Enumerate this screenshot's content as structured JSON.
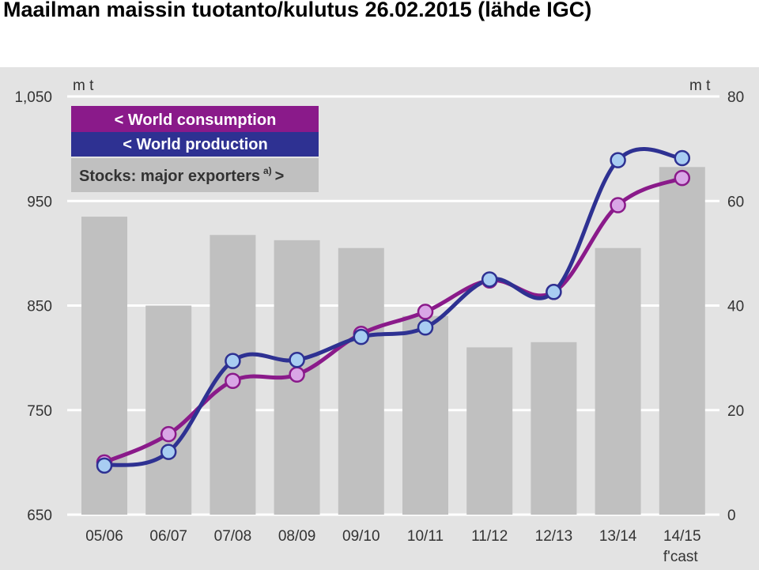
{
  "title": "Maailman maissin tuotanto/kulutus 26.02.2015 (lähde IGC)",
  "chart_data": {
    "type": "bar+line",
    "categories": [
      "05/06",
      "06/07",
      "07/08",
      "08/09",
      "09/10",
      "10/11",
      "11/12",
      "12/13",
      "13/14",
      "14/15"
    ],
    "category_sublabels": [
      "",
      "",
      "",
      "",
      "",
      "",
      "",
      "",
      "",
      "f'cast"
    ],
    "y_left": {
      "unit": "m t",
      "ylim": [
        650,
        1050
      ],
      "ticks": [
        "650",
        "750",
        "850",
        "950",
        "1,050"
      ]
    },
    "y_right": {
      "unit": "m t",
      "ylim": [
        0,
        80
      ],
      "ticks": [
        "0",
        "20",
        "40",
        "60",
        "80"
      ]
    },
    "bars": {
      "name": "Stocks: major exporters",
      "name_superscript": "a)",
      "name_suffix": ">",
      "axis": "right",
      "color": "#c0c0c0",
      "values": [
        57,
        40,
        53.5,
        52.5,
        51,
        38,
        32,
        33,
        51,
        66.5
      ]
    },
    "series": [
      {
        "name": "< World consumption",
        "axis": "left",
        "color": "#8a1a8a",
        "marker_color": "#d9a6e6",
        "values": [
          700,
          727,
          778,
          784,
          823,
          844,
          874,
          863,
          946,
          972
        ]
      },
      {
        "name": "< World production",
        "axis": "left",
        "color": "#2e3192",
        "marker_color": "#a8cdf2",
        "values": [
          697,
          710,
          797,
          798,
          820,
          829,
          875,
          863,
          989,
          991
        ]
      }
    ],
    "grid": true,
    "legend": "top-left"
  }
}
